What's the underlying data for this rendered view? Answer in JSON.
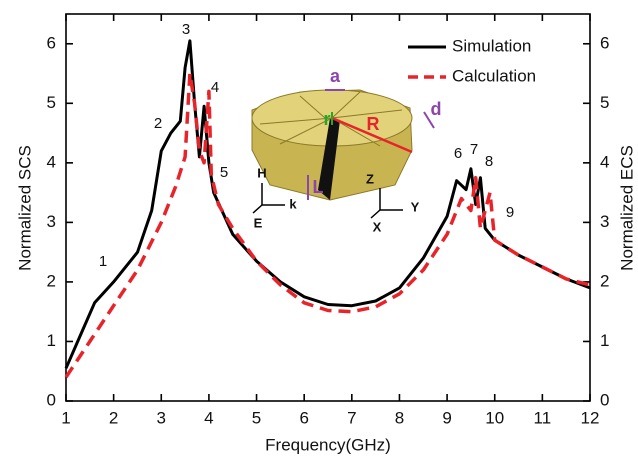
{
  "chart_data": {
    "type": "line",
    "x_label": "Frequency(GHz)",
    "y_label": "Normalized SCS",
    "y2_label": "Normalized ECS",
    "xlim": [
      1,
      12
    ],
    "xticks": [
      1,
      2,
      3,
      4,
      5,
      6,
      7,
      8,
      9,
      10,
      11,
      12
    ],
    "ylim": [
      0,
      6.5
    ],
    "yticks": [
      0,
      1,
      2,
      3,
      4,
      5,
      6
    ],
    "y2lim": [
      0,
      6.5
    ],
    "y2ticks": [
      0,
      1,
      2,
      3,
      4,
      5,
      6
    ],
    "legend": "upper right",
    "series": [
      {
        "name": "Simulation",
        "color": "#000000",
        "dash": false,
        "x": [
          1,
          1.3,
          1.6,
          2,
          2.5,
          2.8,
          3.0,
          3.2,
          3.4,
          3.5,
          3.6,
          3.7,
          3.8,
          3.9,
          4.0,
          4.1,
          4.5,
          5,
          5.5,
          6,
          6.5,
          7,
          7.5,
          8,
          8.5,
          9,
          9.2,
          9.4,
          9.5,
          9.6,
          9.7,
          9.8,
          10,
          10.5,
          11,
          11.5,
          12
        ],
        "values": [
          0.55,
          1.1,
          1.65,
          2.0,
          2.5,
          3.2,
          4.2,
          4.5,
          4.7,
          5.6,
          6.05,
          5.0,
          4.1,
          4.95,
          4.0,
          3.5,
          2.8,
          2.35,
          2.0,
          1.75,
          1.62,
          1.6,
          1.68,
          1.9,
          2.4,
          3.1,
          3.7,
          3.55,
          3.9,
          3.3,
          3.75,
          2.9,
          2.7,
          2.45,
          2.25,
          2.05,
          1.9
        ]
      },
      {
        "name": "Calculation",
        "color": "#e8242a",
        "dash": true,
        "x": [
          1,
          1.5,
          2,
          2.5,
          3,
          3.3,
          3.5,
          3.6,
          3.7,
          3.8,
          3.9,
          4.0,
          4.05,
          4.2,
          4.5,
          5,
          5.5,
          6,
          6.5,
          7,
          7.5,
          8,
          8.5,
          9,
          9.3,
          9.5,
          9.6,
          9.7,
          9.9,
          10,
          10.5,
          11,
          11.5,
          12
        ],
        "values": [
          0.4,
          1.0,
          1.6,
          2.2,
          3.0,
          3.6,
          4.1,
          5.5,
          5.0,
          4.2,
          4.0,
          5.2,
          3.8,
          3.3,
          2.9,
          2.35,
          1.95,
          1.65,
          1.52,
          1.5,
          1.58,
          1.8,
          2.2,
          2.8,
          3.4,
          3.2,
          3.75,
          2.9,
          3.5,
          2.7,
          2.45,
          2.25,
          2.05,
          1.95
        ]
      }
    ],
    "annotations": [
      "1",
      "2",
      "3",
      "4",
      "5",
      "6",
      "7",
      "8",
      "9"
    ],
    "inset_labels": [
      "a",
      "d",
      "R",
      "r",
      "L",
      "H",
      "k",
      "E",
      "Z",
      "Y",
      "X"
    ]
  }
}
